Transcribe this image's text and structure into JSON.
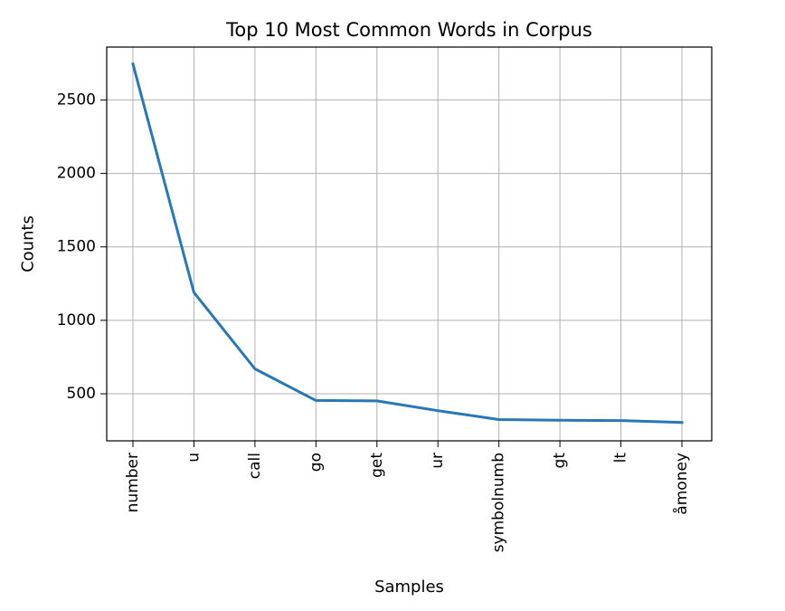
{
  "chart_data": {
    "type": "line",
    "title": "Top 10 Most Common Words in Corpus",
    "xlabel": "Samples",
    "ylabel": "Counts",
    "categories": [
      "number",
      "u",
      "call",
      "go",
      "get",
      "ur",
      "symbolnumb",
      "gt",
      "lt",
      "åmoney"
    ],
    "values": [
      2745,
      1190,
      670,
      455,
      452,
      385,
      325,
      320,
      318,
      305
    ],
    "yticks": [
      500,
      1000,
      1500,
      2000,
      2500
    ],
    "ylim": [
      180,
      2860
    ],
    "grid": true,
    "line_color": "#2878b5"
  }
}
